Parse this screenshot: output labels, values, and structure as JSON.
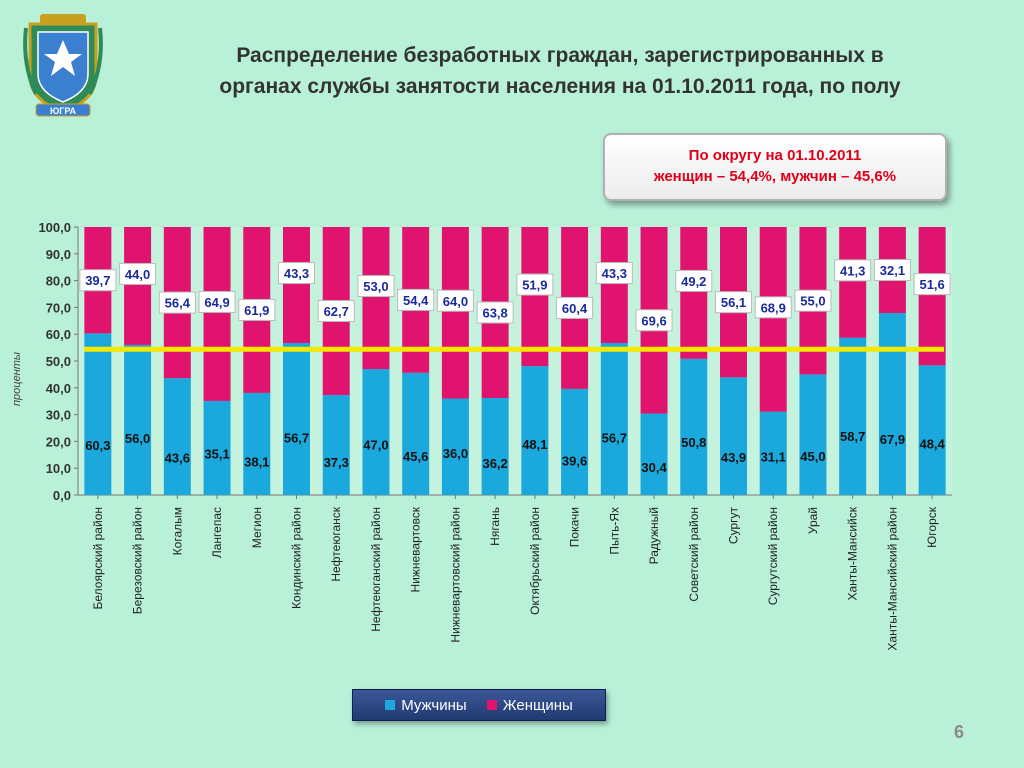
{
  "title_line1": "Распределение безработных граждан, зарегистрированных в",
  "title_line2": "органах службы занятости населения на 01.10.2011 года, по полу",
  "callout_line1": "По округу на 01.10.2011",
  "callout_line2": "женщин – 54,4%, мужчин – 45,6%",
  "page_number": "6",
  "logo_text": "ЮГРА",
  "colors": {
    "men": "#1ba8dc",
    "women": "#e0146e",
    "reference_line": "#f2e800",
    "background": "#b8f0d8"
  },
  "chart_data": {
    "type": "bar",
    "stacked": true,
    "ylabel": "проценты",
    "ylim": [
      0,
      100
    ],
    "yticks": [
      "0,0",
      "10,0",
      "20,0",
      "30,0",
      "40,0",
      "50,0",
      "60,0",
      "70,0",
      "80,0",
      "90,0",
      "100,0"
    ],
    "reference_line": 54.4,
    "legend_position": "bottom",
    "categories": [
      "Белоярский район",
      "Березовский район",
      "Когалым",
      "Лангепас",
      "Мегион",
      "Кондинский район",
      "Нефтеюганск",
      "Нефтеюганский район",
      "Нижневартовск",
      "Нижневартовский район",
      "Нягань",
      "Октябрьский район",
      "Покачи",
      "Пыть-Ях",
      "Радужный",
      "Советский район",
      "Сургут",
      "Сургутский район",
      "Урай",
      "Ханты-Мансийск",
      "Ханты-Мансийский район",
      "Югорск"
    ],
    "series": [
      {
        "name": "Мужчины",
        "values": [
          60.3,
          56.0,
          43.6,
          35.1,
          38.1,
          56.7,
          37.3,
          47.0,
          45.6,
          36.0,
          36.2,
          48.1,
          39.6,
          56.7,
          30.4,
          50.8,
          43.9,
          31.1,
          45.0,
          58.7,
          67.9,
          48.4
        ],
        "labels": [
          "60,3",
          "56,0",
          "43,6",
          "35,1",
          "38,1",
          "56,7",
          "37,3",
          "47,0",
          "45,6",
          "36,0",
          "36,2",
          "48,1",
          "39,6",
          "56,7",
          "30,4",
          "50,8",
          "43,9",
          "31,1",
          "45,0",
          "58,7",
          "67,9",
          "48,4"
        ]
      },
      {
        "name": "Женщины",
        "values": [
          39.7,
          44.0,
          56.4,
          64.9,
          61.9,
          43.3,
          62.7,
          53.0,
          54.4,
          64.0,
          63.8,
          51.9,
          60.4,
          43.3,
          69.6,
          49.2,
          56.1,
          68.9,
          55.0,
          41.3,
          32.1,
          51.6
        ],
        "labels": [
          "39,7",
          "44,0",
          "56,4",
          "64,9",
          "61,9",
          "43,3",
          "62,7",
          "53,0",
          "54,4",
          "64,0",
          "63,8",
          "51,9",
          "60,4",
          "43,3",
          "69,6",
          "49,2",
          "56,1",
          "68,9",
          "55,0",
          "41,3",
          "32,1",
          "51,6"
        ]
      }
    ]
  }
}
